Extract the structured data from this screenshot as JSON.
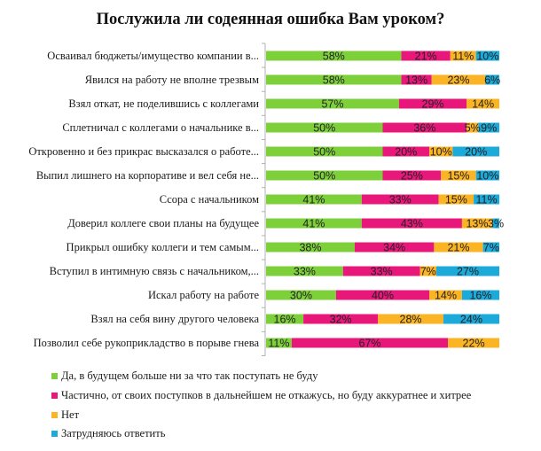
{
  "chart_data": {
    "type": "bar",
    "orientation": "horizontal",
    "stacked": true,
    "percent_stacked": true,
    "title": "Послужила ли содеянная ошибка Вам уроком?",
    "xlabel": "",
    "ylabel": "",
    "xlim": [
      0,
      100
    ],
    "grid": false,
    "legend_position": "bottom-left",
    "categories": [
      "Осваивал бюджеты/имущество компании в...",
      "Явился на работу не вполне трезвым",
      "Взял откат, не поделившись с коллегами",
      "Сплетничал с коллегами о начальнике в...",
      "Откровенно и без прикрас высказался о работе...",
      "Выпил лишнего на корпоративе и вел себя не...",
      "Ссора с начальником",
      "Доверил коллеге свои планы на будущее",
      "Прикрыл ошибку коллеги и тем самым...",
      "Вступил в интимную связь с начальником,...",
      "Искал работу на работе",
      "Взял на себя вину другого человека",
      "Позволил себе рукоприкладство в порыве гнева"
    ],
    "series": [
      {
        "name": "Да, в будущем больше ни за что так поступать не буду",
        "color": "#7ED03B",
        "values": [
          58,
          58,
          57,
          50,
          50,
          50,
          41,
          41,
          38,
          33,
          30,
          16,
          11
        ]
      },
      {
        "name": "Частично, от своих поступков в дальнейшем не откажусь, но буду аккуратнее и хитрее",
        "color": "#E8177A",
        "values": [
          21,
          13,
          29,
          36,
          20,
          25,
          33,
          43,
          34,
          33,
          40,
          32,
          67
        ]
      },
      {
        "name": "Нет",
        "color": "#FBB424",
        "values": [
          11,
          23,
          14,
          5,
          10,
          15,
          15,
          13,
          21,
          7,
          14,
          28,
          22
        ]
      },
      {
        "name": "Затрудняюсь ответить",
        "color": "#1BAAD9",
        "values": [
          10,
          6,
          0,
          9,
          20,
          10,
          11,
          3,
          7,
          27,
          16,
          24,
          0
        ]
      }
    ],
    "value_suffix": "%"
  }
}
